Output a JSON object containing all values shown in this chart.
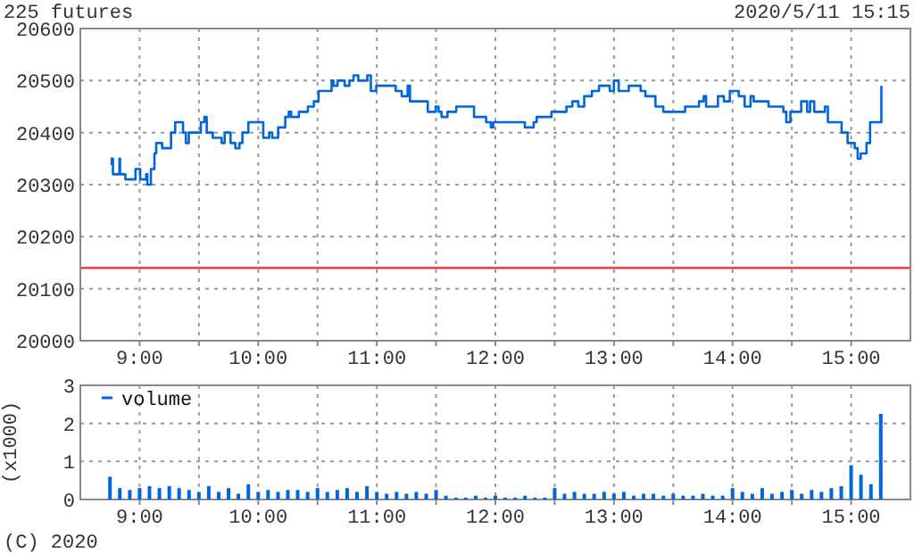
{
  "chart_data": [
    {
      "type": "step",
      "title": "225 futures",
      "subtitle": "2020/5/11 15:15",
      "xlim": [
        8.5,
        15.5
      ],
      "xticks": [
        {
          "value": 9,
          "label": "9:00"
        },
        {
          "value": 9.5,
          "label": null
        },
        {
          "value": 10,
          "label": "10:00"
        },
        {
          "value": 10.5,
          "label": null
        },
        {
          "value": 11,
          "label": "11:00"
        },
        {
          "value": 11.5,
          "label": null
        },
        {
          "value": 12,
          "label": "12:00"
        },
        {
          "value": 12.5,
          "label": null
        },
        {
          "value": 13,
          "label": "13:00"
        },
        {
          "value": 13.5,
          "label": null
        },
        {
          "value": 14,
          "label": "14:00"
        },
        {
          "value": 14.5,
          "label": null
        },
        {
          "value": 15,
          "label": "15:00"
        }
      ],
      "ylim": [
        20000,
        20600
      ],
      "yticks": [
        20000,
        20100,
        20200,
        20300,
        20400,
        20500,
        20600
      ],
      "grid": true,
      "legend": false,
      "ref_lines": [
        {
          "axis": "y",
          "value": 20140,
          "label": null,
          "color": "#ff2222"
        }
      ],
      "series": [
        {
          "color": "#0066dd",
          "x": [
            8.755,
            8.765,
            8.775,
            8.83,
            8.835,
            8.88,
            8.965,
            9.005,
            9.055,
            9.065,
            9.095,
            9.125,
            9.14,
            9.19,
            9.265,
            9.3,
            9.366,
            9.39,
            9.415,
            9.516,
            9.546,
            9.566,
            9.617,
            9.692,
            9.717,
            9.767,
            9.807,
            9.842,
            9.867,
            9.917,
            10.043,
            10.093,
            10.118,
            10.168,
            10.228,
            10.258,
            10.278,
            10.343,
            10.419,
            10.469,
            10.509,
            10.619,
            10.634,
            10.669,
            10.729,
            10.769,
            10.804,
            10.844,
            10.92,
            10.95,
            10.995,
            11.16,
            11.21,
            11.26,
            11.28,
            11.43,
            11.496,
            11.521,
            11.546,
            11.596,
            11.67,
            11.82,
            11.922,
            11.962,
            11.982,
            12.248,
            12.323,
            12.348,
            12.473,
            12.599,
            12.649,
            12.699,
            12.749,
            12.814,
            12.874,
            12.964,
            12.999,
            13.04,
            13.125,
            13.225,
            13.265,
            13.35,
            13.416,
            13.6,
            13.717,
            13.757,
            13.777,
            13.877,
            13.927,
            13.977,
            14.052,
            14.102,
            14.152,
            14.178,
            14.303,
            14.428,
            14.453,
            14.488,
            14.579,
            14.629,
            14.654,
            14.689,
            14.779,
            14.804,
            14.92,
            14.97,
            15.03,
            15.055,
            15.08,
            15.13,
            15.16,
            15.255
          ],
          "values": [
            20340,
            20350,
            20320,
            20350,
            20320,
            20310,
            20330,
            20310,
            20320,
            20300,
            20330,
            20360,
            20380,
            20370,
            20400,
            20420,
            20400,
            20380,
            20400,
            20420,
            20430,
            20400,
            20390,
            20380,
            20400,
            20380,
            20370,
            20380,
            20400,
            20420,
            20390,
            20400,
            20390,
            20410,
            20430,
            20440,
            20430,
            20440,
            20450,
            20460,
            20480,
            20500,
            20490,
            20500,
            20490,
            20500,
            20510,
            20500,
            20510,
            20480,
            20490,
            20480,
            20470,
            20490,
            20460,
            20440,
            20450,
            20440,
            20430,
            20440,
            20450,
            20430,
            20420,
            20410,
            20420,
            20410,
            20420,
            20430,
            20440,
            20450,
            20460,
            20450,
            20470,
            20480,
            20490,
            20480,
            20500,
            20480,
            20490,
            20480,
            20470,
            20450,
            20440,
            20450,
            20460,
            20470,
            20450,
            20470,
            20460,
            20480,
            20470,
            20450,
            20470,
            20460,
            20450,
            20440,
            20420,
            20440,
            20460,
            20440,
            20460,
            20440,
            20450,
            20420,
            20400,
            20380,
            20370,
            20350,
            20360,
            20380,
            20420,
            20490
          ]
        }
      ]
    },
    {
      "type": "bar",
      "ylabel": "(x1000)",
      "annotations": [
        "(C) 2020"
      ],
      "xlim": [
        8.5,
        15.5
      ],
      "xticks": [
        {
          "value": 9,
          "label": "9:00"
        },
        {
          "value": 9.5,
          "label": null
        },
        {
          "value": 10,
          "label": "10:00"
        },
        {
          "value": 10.5,
          "label": null
        },
        {
          "value": 11,
          "label": "11:00"
        },
        {
          "value": 11.5,
          "label": null
        },
        {
          "value": 12,
          "label": "12:00"
        },
        {
          "value": 12.5,
          "label": null
        },
        {
          "value": 13,
          "label": "13:00"
        },
        {
          "value": 13.5,
          "label": null
        },
        {
          "value": 14,
          "label": "14:00"
        },
        {
          "value": 14.5,
          "label": null
        },
        {
          "value": 15,
          "label": "15:00"
        }
      ],
      "ylim": [
        0,
        3
      ],
      "yticks": [
        0,
        1,
        2,
        3
      ],
      "grid": true,
      "legend": "top left",
      "series": [
        {
          "name": "volume",
          "color": "#0066dd",
          "x": [
            8.75,
            8.833,
            8.917,
            9,
            9.083,
            9.167,
            9.25,
            9.333,
            9.417,
            9.5,
            9.583,
            9.667,
            9.75,
            9.833,
            9.917,
            10,
            10.083,
            10.167,
            10.25,
            10.333,
            10.417,
            10.5,
            10.583,
            10.667,
            10.75,
            10.833,
            10.917,
            11,
            11.083,
            11.167,
            11.25,
            11.333,
            11.417,
            11.5,
            11.583,
            11.667,
            11.75,
            11.833,
            11.917,
            12,
            12.083,
            12.167,
            12.25,
            12.333,
            12.417,
            12.5,
            12.583,
            12.667,
            12.75,
            12.833,
            12.917,
            13,
            13.083,
            13.167,
            13.25,
            13.333,
            13.417,
            13.5,
            13.583,
            13.667,
            13.75,
            13.833,
            13.917,
            14,
            14.083,
            14.167,
            14.25,
            14.333,
            14.417,
            14.5,
            14.583,
            14.667,
            14.75,
            14.833,
            14.917,
            15,
            15.083,
            15.167,
            15.25
          ],
          "values": [
            0.6,
            0.3,
            0.25,
            0.3,
            0.35,
            0.3,
            0.35,
            0.3,
            0.25,
            0.2,
            0.35,
            0.2,
            0.3,
            0.15,
            0.4,
            0.2,
            0.25,
            0.2,
            0.25,
            0.25,
            0.2,
            0.3,
            0.2,
            0.25,
            0.3,
            0.2,
            0.35,
            0.2,
            0.15,
            0.2,
            0.15,
            0.2,
            0.15,
            0.25,
            0.1,
            0.05,
            0.05,
            0.1,
            0.05,
            0.1,
            0.05,
            0.05,
            0.1,
            0.05,
            0.05,
            0.3,
            0.15,
            0.2,
            0.15,
            0.15,
            0.2,
            0.15,
            0.2,
            0.1,
            0.15,
            0.15,
            0.1,
            0.15,
            0.1,
            0.1,
            0.15,
            0.1,
            0.1,
            0.3,
            0.2,
            0.15,
            0.3,
            0.15,
            0.2,
            0.25,
            0.15,
            0.25,
            0.2,
            0.3,
            0.35,
            0.9,
            0.65,
            0.4,
            2.25
          ]
        }
      ]
    }
  ]
}
